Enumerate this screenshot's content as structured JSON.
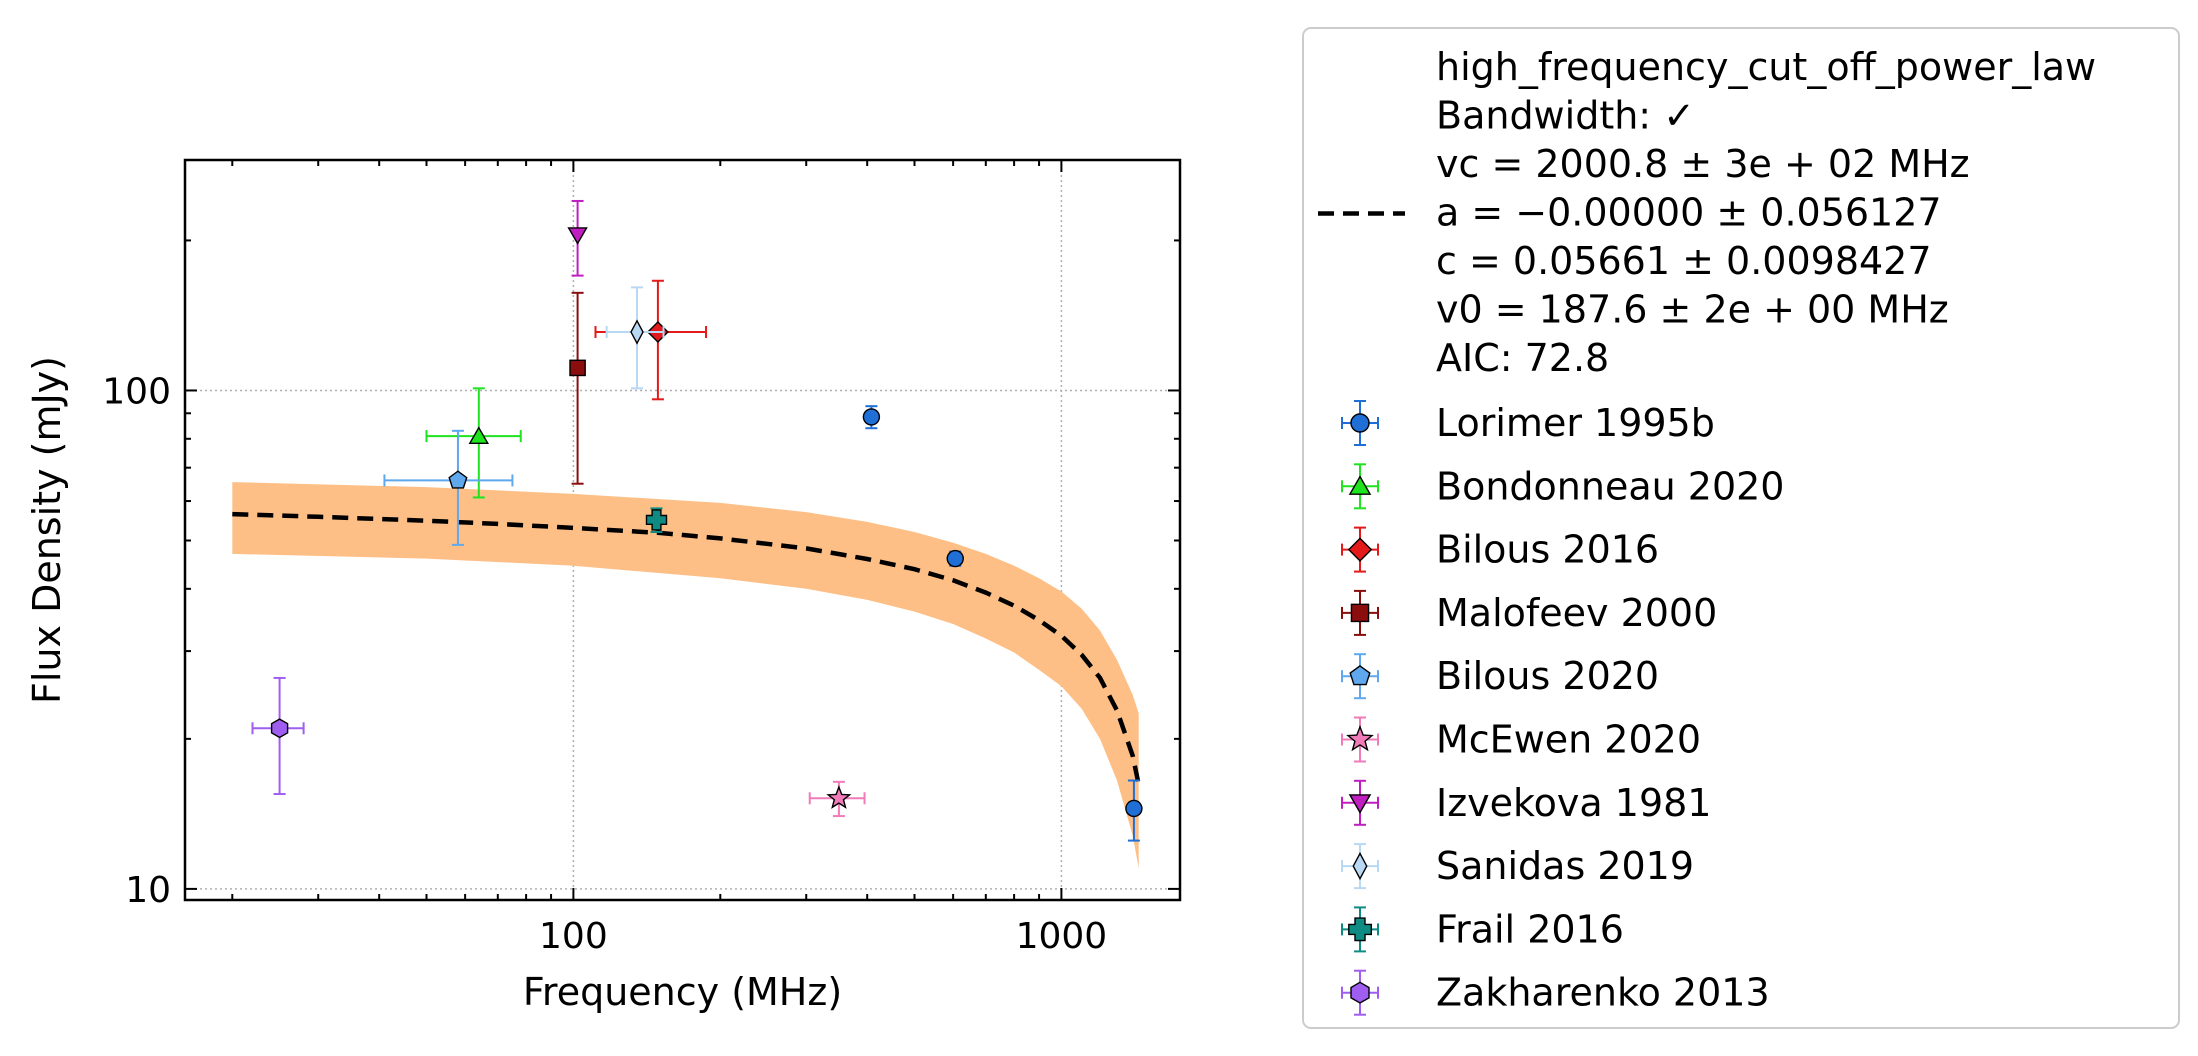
{
  "chart_data": {
    "type": "scatter",
    "xlabel": "Frequency (MHz)",
    "ylabel": "Flux Density (mJy)",
    "xscale": "log",
    "yscale": "log",
    "xlim": [
      16,
      1750
    ],
    "ylim": [
      9.5,
      290
    ],
    "grid": true,
    "legend_placement": "outside right",
    "x_ticks": [
      {
        "value": 100,
        "label": "100"
      },
      {
        "value": 1000,
        "label": "1000"
      }
    ],
    "y_ticks": [
      {
        "value": 10,
        "label": "10"
      },
      {
        "value": 100,
        "label": "100"
      }
    ],
    "fit": {
      "label_lines": [
        "high_frequency_cut_off_power_law",
        "Bandwidth: ✓",
        "vc = 2000.8 ± 3e + 02 MHz",
        "a = −0.00000 ± 0.056127",
        "c = 0.05661 ± 0.0098427",
        "v0 = 187.6 ± 2e + 00 MHz",
        "AIC: 72.8"
      ],
      "color": "#000000",
      "band_color": "#fdbf86",
      "curve": [
        {
          "x": 20,
          "y": 56.5
        },
        {
          "x": 30,
          "y": 55.8
        },
        {
          "x": 50,
          "y": 54.8
        },
        {
          "x": 70,
          "y": 54.0
        },
        {
          "x": 100,
          "y": 53.0
        },
        {
          "x": 150,
          "y": 51.8
        },
        {
          "x": 200,
          "y": 50.5
        },
        {
          "x": 300,
          "y": 48.2
        },
        {
          "x": 400,
          "y": 45.9
        },
        {
          "x": 500,
          "y": 43.8
        },
        {
          "x": 600,
          "y": 41.6
        },
        {
          "x": 700,
          "y": 39.3
        },
        {
          "x": 800,
          "y": 37.0
        },
        {
          "x": 900,
          "y": 34.6
        },
        {
          "x": 1000,
          "y": 32.2
        },
        {
          "x": 1100,
          "y": 29.5
        },
        {
          "x": 1200,
          "y": 26.5
        },
        {
          "x": 1300,
          "y": 22.8
        },
        {
          "x": 1400,
          "y": 18.5
        },
        {
          "x": 1440,
          "y": 16.2
        }
      ],
      "band_upper": [
        {
          "x": 20,
          "y": 65.5
        },
        {
          "x": 50,
          "y": 64.0
        },
        {
          "x": 100,
          "y": 62.0
        },
        {
          "x": 200,
          "y": 59.5
        },
        {
          "x": 300,
          "y": 57.0
        },
        {
          "x": 400,
          "y": 54.5
        },
        {
          "x": 500,
          "y": 52.0
        },
        {
          "x": 600,
          "y": 49.5
        },
        {
          "x": 700,
          "y": 47.0
        },
        {
          "x": 800,
          "y": 44.5
        },
        {
          "x": 900,
          "y": 42.0
        },
        {
          "x": 1000,
          "y": 39.5
        },
        {
          "x": 1100,
          "y": 36.5
        },
        {
          "x": 1200,
          "y": 33.0
        },
        {
          "x": 1300,
          "y": 28.8
        },
        {
          "x": 1400,
          "y": 24.5
        },
        {
          "x": 1440,
          "y": 22.5
        }
      ],
      "band_lower": [
        {
          "x": 20,
          "y": 47.0
        },
        {
          "x": 50,
          "y": 46.0
        },
        {
          "x": 100,
          "y": 44.5
        },
        {
          "x": 200,
          "y": 42.0
        },
        {
          "x": 300,
          "y": 40.0
        },
        {
          "x": 400,
          "y": 38.0
        },
        {
          "x": 500,
          "y": 36.0
        },
        {
          "x": 600,
          "y": 34.0
        },
        {
          "x": 700,
          "y": 31.8
        },
        {
          "x": 800,
          "y": 29.8
        },
        {
          "x": 900,
          "y": 27.5
        },
        {
          "x": 1000,
          "y": 25.5
        },
        {
          "x": 1100,
          "y": 23.0
        },
        {
          "x": 1200,
          "y": 20.0
        },
        {
          "x": 1300,
          "y": 16.5
        },
        {
          "x": 1400,
          "y": 12.8
        },
        {
          "x": 1440,
          "y": 11.0
        }
      ]
    },
    "series": [
      {
        "name": "Lorimer 1995b",
        "marker": "circle",
        "color": "#1f6fd6",
        "points": [
          {
            "x": 408,
            "y": 88.5,
            "yerr": [
              4.5,
              4.5
            ]
          },
          {
            "x": 606,
            "y": 46.0,
            "yerr": [
              1.5,
              1.5
            ]
          },
          {
            "x": 1408,
            "y": 14.5,
            "yerr": [
              2.0,
              2.0
            ]
          }
        ]
      },
      {
        "name": "Bondonneau 2020",
        "marker": "triangle-up",
        "color": "#1ee31e",
        "points": [
          {
            "x": 64,
            "y": 81,
            "xerr": [
              14,
              14
            ],
            "yerr": [
              20,
              20
            ]
          }
        ]
      },
      {
        "name": "Bilous 2016",
        "marker": "diamond",
        "color": "#e31a1a",
        "points": [
          {
            "x": 149,
            "y": 131,
            "xerr": [
              38,
              38
            ],
            "yerr": [
              35,
              35
            ]
          }
        ]
      },
      {
        "name": "Malofeev 2000",
        "marker": "square",
        "color": "#8b0e0e",
        "points": [
          {
            "x": 102,
            "y": 111,
            "yerr": [
              46,
              46
            ]
          }
        ]
      },
      {
        "name": "Bilous 2020",
        "marker": "pentagon",
        "color": "#5fa8ee",
        "points": [
          {
            "x": 58,
            "y": 66,
            "xerr": [
              17,
              17
            ],
            "yerr": [
              17,
              17
            ]
          }
        ]
      },
      {
        "name": "McEwen 2020",
        "marker": "star",
        "color": "#f07bb8",
        "points": [
          {
            "x": 350,
            "y": 15.2,
            "xerr": [
              45,
              45
            ],
            "yerr": [
              1.2,
              1.2
            ]
          }
        ]
      },
      {
        "name": "Izvekova 1981",
        "marker": "triangle-down",
        "color": "#c01ec0",
        "points": [
          {
            "x": 102,
            "y": 205,
            "yerr": [
              35,
              35
            ]
          }
        ]
      },
      {
        "name": "Sanidas 2019",
        "marker": "thin-diamond",
        "color": "#b8d8f4",
        "points": [
          {
            "x": 135,
            "y": 131,
            "xerr": [
              18,
              18
            ],
            "yerr": [
              30,
              30
            ]
          }
        ]
      },
      {
        "name": "Frail 2016",
        "marker": "plus",
        "color": "#0e8b82",
        "points": [
          {
            "x": 148,
            "y": 55,
            "yerr": [
              3,
              3
            ]
          }
        ]
      },
      {
        "name": "Zakharenko 2013",
        "marker": "hexagon",
        "color": "#a05ef0",
        "points": [
          {
            "x": 25,
            "y": 21,
            "xerr": [
              3,
              3
            ],
            "yerr": [
              5.5,
              5.5
            ]
          }
        ]
      }
    ]
  }
}
